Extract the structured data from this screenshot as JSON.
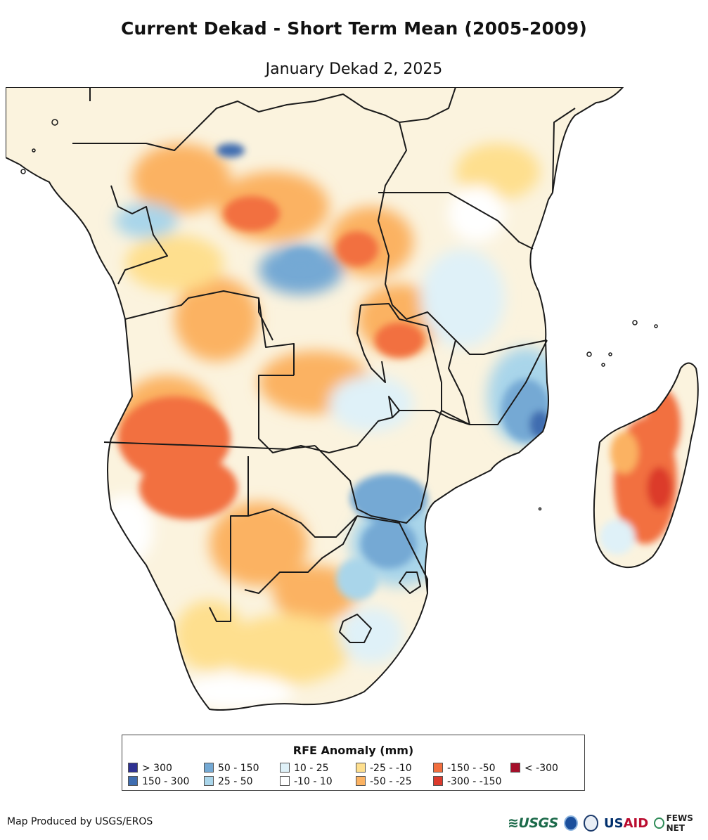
{
  "title": "Current Dekad - Short Term Mean (2005-2009)",
  "subtitle": "January Dekad 2, 2025",
  "map": {
    "region": "Southern Africa",
    "variable": "RFE Anomaly",
    "dominant_patterns": [
      {
        "area": "Namibia / southern Angola",
        "category": "-150 - -50"
      },
      {
        "area": "Madagascar (east)",
        "category": "-150 - -50"
      },
      {
        "area": "Zimbabwe / central Mozambique",
        "category": "50 - 150"
      },
      {
        "area": "South Africa interior",
        "category": "-25 - -10"
      }
    ]
  },
  "legend": {
    "title": "RFE Anomaly (mm)",
    "items": [
      {
        "label": "> 300",
        "color": "#2e3192"
      },
      {
        "label": "150 - 300",
        "color": "#3f6db0"
      },
      {
        "label": "50 - 150",
        "color": "#74a9d4"
      },
      {
        "label": "25 - 50",
        "color": "#a9d5ea"
      },
      {
        "label": "10 - 25",
        "color": "#dff1f8"
      },
      {
        "label": "-10 - 10",
        "color": "#ffffff"
      },
      {
        "label": "-25 - -10",
        "color": "#fedf8e"
      },
      {
        "label": "-50 - -25",
        "color": "#fbb262"
      },
      {
        "label": "-150 - -50",
        "color": "#f26f3f"
      },
      {
        "label": "-300 - -150",
        "color": "#dc3a2c"
      },
      {
        "label": "< -300",
        "color": "#a50f2a"
      }
    ]
  },
  "footer": {
    "credit": "Map Produced by USGS/EROS",
    "logos": {
      "usgs": "USGS",
      "usaid_main": "US",
      "usaid_accent": "AID",
      "fews": "FEWS NET"
    }
  }
}
